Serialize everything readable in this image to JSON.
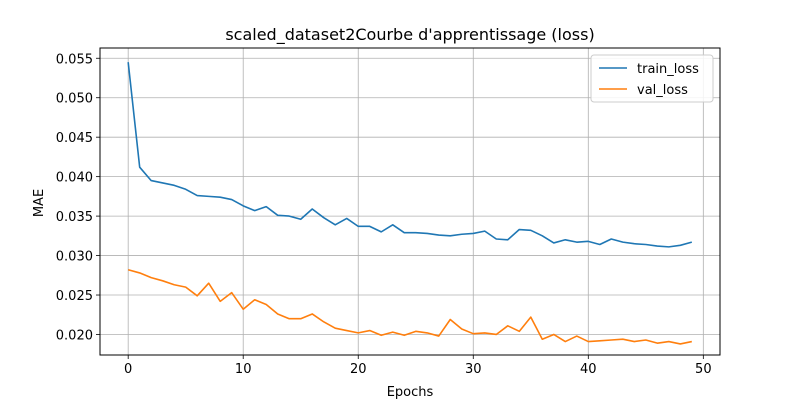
{
  "chart_data": {
    "type": "line",
    "title": "scaled_dataset2Courbe d'apprentissage (loss)",
    "xlabel": "Epochs",
    "ylabel": "MAE",
    "xlim": [
      -2.45,
      51.45
    ],
    "ylim": [
      0.0174,
      0.0563
    ],
    "xticks": [
      0,
      10,
      20,
      30,
      40,
      50
    ],
    "yticks": [
      0.02,
      0.025,
      0.03,
      0.035,
      0.04,
      0.045,
      0.05,
      0.055
    ],
    "ytick_decimals": 3,
    "grid": true,
    "legend": "top-right",
    "x": [
      0,
      1,
      2,
      3,
      4,
      5,
      6,
      7,
      8,
      9,
      10,
      11,
      12,
      13,
      14,
      15,
      16,
      17,
      18,
      19,
      20,
      21,
      22,
      23,
      24,
      25,
      26,
      27,
      28,
      29,
      30,
      31,
      32,
      33,
      34,
      35,
      36,
      37,
      38,
      39,
      40,
      41,
      42,
      43,
      44,
      45,
      46,
      47,
      48,
      49
    ],
    "series": [
      {
        "name": "train_loss",
        "color": "#1f77b4",
        "values": [
          0.0545,
          0.0412,
          0.0395,
          0.0392,
          0.0389,
          0.0384,
          0.0376,
          0.0375,
          0.0374,
          0.0371,
          0.0363,
          0.0357,
          0.0362,
          0.0351,
          0.035,
          0.0346,
          0.0359,
          0.0348,
          0.0339,
          0.0347,
          0.0337,
          0.0337,
          0.033,
          0.0339,
          0.0329,
          0.0329,
          0.0328,
          0.0326,
          0.0325,
          0.0327,
          0.0328,
          0.0331,
          0.0321,
          0.032,
          0.0333,
          0.0332,
          0.0325,
          0.0316,
          0.032,
          0.0317,
          0.0318,
          0.0314,
          0.0321,
          0.0317,
          0.0315,
          0.0314,
          0.0312,
          0.0311,
          0.0313,
          0.0317
        ]
      },
      {
        "name": "val_loss",
        "color": "#ff7f0e",
        "values": [
          0.0282,
          0.0278,
          0.0272,
          0.0268,
          0.0263,
          0.026,
          0.0249,
          0.0265,
          0.0242,
          0.0253,
          0.0232,
          0.0244,
          0.0238,
          0.0226,
          0.022,
          0.022,
          0.0226,
          0.0216,
          0.0208,
          0.0205,
          0.0202,
          0.0205,
          0.0199,
          0.0203,
          0.0199,
          0.0204,
          0.0202,
          0.0198,
          0.0219,
          0.0207,
          0.0201,
          0.0202,
          0.02,
          0.0211,
          0.0204,
          0.0222,
          0.0194,
          0.02,
          0.0191,
          0.0198,
          0.0191,
          0.0192,
          0.0193,
          0.0194,
          0.0191,
          0.0193,
          0.0189,
          0.0191,
          0.0188,
          0.0191
        ]
      }
    ]
  }
}
